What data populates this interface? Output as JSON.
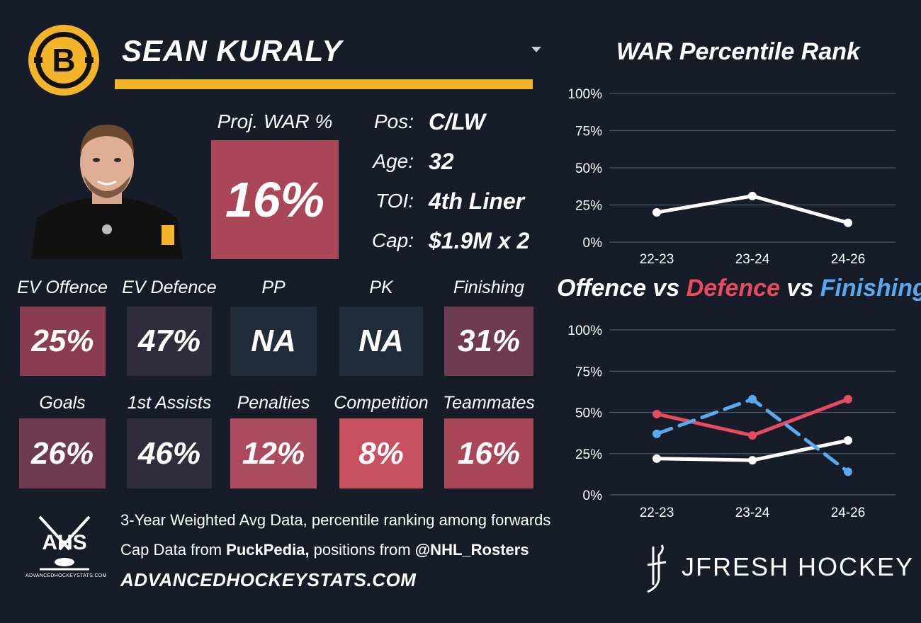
{
  "player": {
    "name": "SEAN KURALY",
    "team_logo_letter": "B"
  },
  "projection": {
    "label": "Proj. WAR %",
    "value": "16%"
  },
  "info": [
    {
      "label": "Pos:",
      "value": "C/LW"
    },
    {
      "label": "Age:",
      "value": "32"
    },
    {
      "label": "TOI:",
      "value": "4th Liner"
    },
    {
      "label": "Cap:",
      "value": "$1.9M x 2"
    }
  ],
  "stats_row1": [
    {
      "label": "EV Offence",
      "value": "25%",
      "color": "#8a3c52"
    },
    {
      "label": "EV Defence",
      "value": "47%",
      "color": "#2e2c3d"
    },
    {
      "label": "PP",
      "value": "NA",
      "color": "#212c3a"
    },
    {
      "label": "PK",
      "value": "NA",
      "color": "#212c3a"
    },
    {
      "label": "Finishing",
      "value": "31%",
      "color": "#6d3a4f"
    }
  ],
  "stats_row2": [
    {
      "label": "Goals",
      "value": "26%",
      "color": "#6d3a4f"
    },
    {
      "label": "1st Assists",
      "value": "46%",
      "color": "#2e2c3d"
    },
    {
      "label": "Penalties",
      "value": "12%",
      "color": "#ad4b5e"
    },
    {
      "label": "Competition",
      "value": "8%",
      "color": "#c9505f"
    },
    {
      "label": "Teammates",
      "value": "16%",
      "color": "#a94657"
    }
  ],
  "footer": {
    "line1": "3-Year Weighted Avg Data, percentile ranking among forwards",
    "line2_prefix": "Cap Data from ",
    "line2_src1": "PuckPedia,",
    "line2_mid": " positions from ",
    "line2_src2": "@NHL_Rosters",
    "site": "ADVANCEDHOCKEYSTATS.COM",
    "ahs_logo_text": "AHS",
    "ahs_small": "ADVANCEDHOCKEYSTATS.COM",
    "brand": "JFRESH HOCKEY"
  },
  "chart_data": [
    {
      "type": "line",
      "title": "WAR Percentile Rank",
      "categories": [
        "22-23",
        "23-24",
        "24-26"
      ],
      "series": [
        {
          "name": "WAR",
          "values": [
            20,
            31,
            13
          ],
          "color": "#ffffff",
          "dashed": false
        }
      ],
      "ylim": [
        0,
        100
      ],
      "yticks": [
        "0%",
        "25%",
        "50%",
        "75%",
        "100%"
      ],
      "grid": true
    },
    {
      "type": "line",
      "title": "Offence vs Defence vs Finishing",
      "title_parts": [
        {
          "text": "Offence",
          "color": "#ffffff"
        },
        {
          "text": " vs ",
          "color": "#ffffff"
        },
        {
          "text": "Defence",
          "color": "#e84a5f"
        },
        {
          "text": " vs ",
          "color": "#ffffff"
        },
        {
          "text": "Finishing",
          "color": "#5aa9ee"
        }
      ],
      "categories": [
        "22-23",
        "23-24",
        "24-26"
      ],
      "series": [
        {
          "name": "Offence",
          "values": [
            22,
            21,
            33
          ],
          "color": "#ffffff",
          "dashed": false
        },
        {
          "name": "Defence",
          "values": [
            49,
            36,
            58
          ],
          "color": "#e84a5f",
          "dashed": false
        },
        {
          "name": "Finishing",
          "values": [
            37,
            58,
            14
          ],
          "color": "#5aa9ee",
          "dashed": true
        }
      ],
      "ylim": [
        0,
        100
      ],
      "yticks": [
        "0%",
        "25%",
        "50%",
        "75%",
        "100%"
      ],
      "grid": true
    }
  ]
}
